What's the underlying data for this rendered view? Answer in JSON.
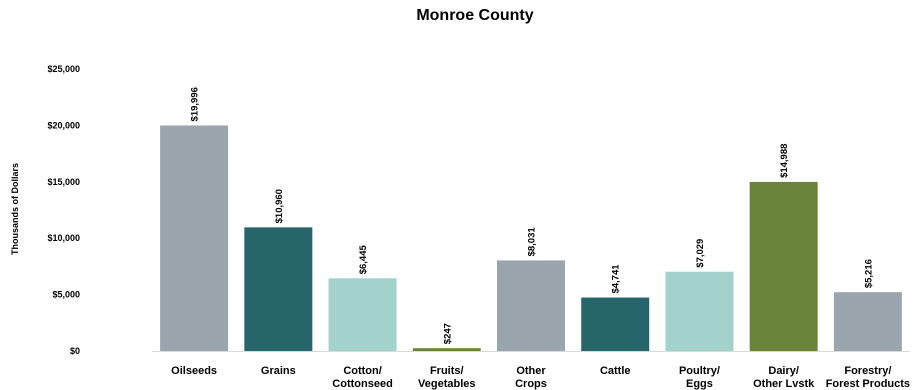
{
  "chart_data": {
    "type": "bar",
    "title": "Monroe County",
    "ylabel": "Thousands of Dollars",
    "xlabel": "",
    "ylim": [
      0,
      25000
    ],
    "yticks": [
      0,
      5000,
      10000,
      15000,
      20000,
      25000
    ],
    "ytick_labels": [
      "$0",
      "$5,000",
      "$10,000",
      "$15,000",
      "$20,000",
      "$25,000"
    ],
    "grid": false,
    "categories": [
      [
        "Oilseeds"
      ],
      [
        "Grains"
      ],
      [
        "Cotton/",
        "Cottonseed"
      ],
      [
        "Fruits/",
        "Vegetables"
      ],
      [
        "Other",
        "Crops"
      ],
      [
        "Cattle"
      ],
      [
        "Poultry/",
        "Eggs"
      ],
      [
        "Dairy/",
        "Other Lvstk"
      ],
      [
        "Forestry/",
        "Forest Products"
      ]
    ],
    "values": [
      19996,
      10960,
      6445,
      247,
      8031,
      4741,
      7029,
      14988,
      5216
    ],
    "data_labels": [
      "$19,996",
      "$10,960",
      "$6,445",
      "$247",
      "$8,031",
      "$4,741",
      "$7,029",
      "$14,988",
      "$5,216"
    ],
    "colors": [
      "#9aa5ae",
      "#26666b",
      "#a2d2cb",
      "#6a833a",
      "#9aa5ae",
      "#26666b",
      "#a2d2cb",
      "#6a833a",
      "#9aa5ae"
    ]
  }
}
